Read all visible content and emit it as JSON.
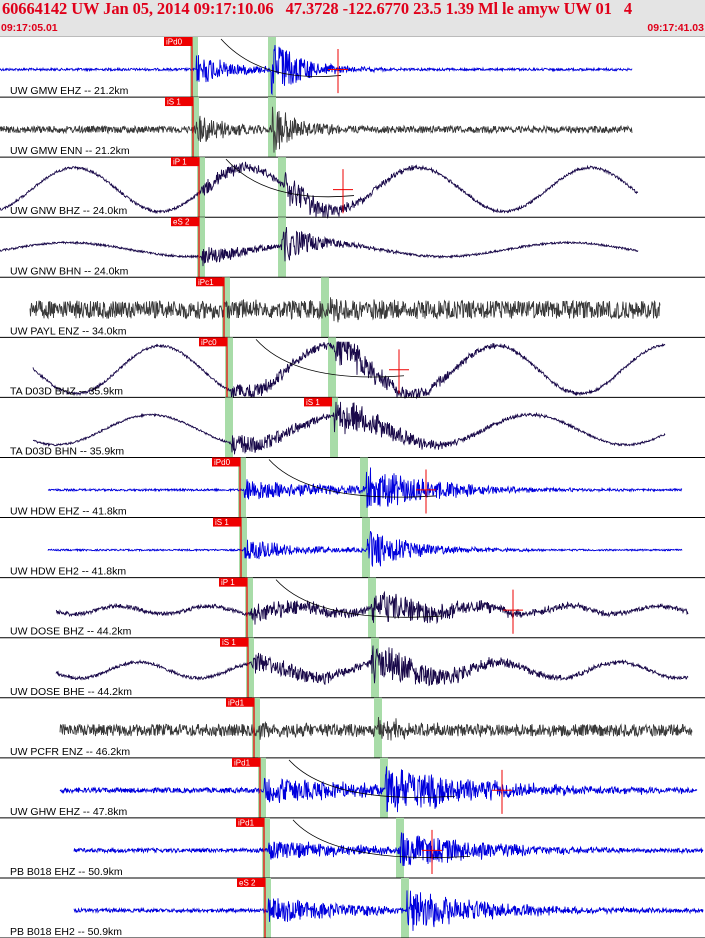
{
  "header": {
    "title": "60664142 UW Jan 05, 2014 09:17:10.06   47.3728 -122.6770 23.5 1.39 Ml le amyw UW 01   4",
    "start_time": "09:17:05.01",
    "end_time": "09:17:41.03"
  },
  "colors": {
    "blue": "#0000dd",
    "gray": "#3a3a3a",
    "navy": "#1a0a4a",
    "pick": "#ee0000",
    "window": "#a8dca8"
  },
  "traces": [
    {
      "label": "UW GMW EHZ -- 21.2km",
      "pick": "iPd0",
      "color": "blue",
      "start": 0,
      "end": 632,
      "noise": 1.2,
      "wave": 0,
      "period": 0,
      "p": 196,
      "s": 271,
      "amp": 30,
      "decay": 40,
      "win": [
        192,
        270
      ],
      "marker": 338,
      "curve": 1,
      "sPick": ""
    },
    {
      "label": "UW GMW ENN -- 21.2km",
      "pick": "iS 1",
      "color": "gray",
      "start": 0,
      "end": 632,
      "noise": 3.5,
      "wave": 0,
      "period": 0,
      "p": 196,
      "s": 272,
      "amp": 28,
      "decay": 30,
      "win": [
        193,
        270
      ],
      "marker": 0,
      "curve": 0,
      "sPick": ""
    },
    {
      "label": "UW GNW BHZ -- 24.0km",
      "pick": "iP 1",
      "color": "navy",
      "start": 0,
      "end": 638,
      "noise": 1.3,
      "wave": 22,
      "period": 172,
      "p": 201,
      "s": 284,
      "amp": 16,
      "decay": 70,
      "win": [
        199,
        280
      ],
      "marker": 343,
      "curve": 1,
      "sPick": ""
    },
    {
      "label": "UW GNW BHN -- 24.0km",
      "pick": "eS 2",
      "color": "navy",
      "start": 0,
      "end": 638,
      "noise": 1.0,
      "wave": 7,
      "period": 250,
      "p": 201,
      "s": 281,
      "amp": 20,
      "decay": 45,
      "win": [
        199,
        280
      ],
      "marker": 0,
      "curve": 0,
      "sPick": ""
    },
    {
      "label": "UW PAYL ENZ -- 34.0km",
      "pick": "iPc1",
      "color": "gray",
      "start": 30,
      "end": 660,
      "noise": 9.0,
      "wave": 0,
      "period": 0,
      "p": 228,
      "s": 326,
      "amp": 6,
      "decay": 60,
      "win": [
        224,
        323
      ],
      "marker": 0,
      "curve": 0,
      "sPick": ""
    },
    {
      "label": "TA D03D BHZ -- 35.9km",
      "pick": "iPc0",
      "color": "navy",
      "start": 33,
      "end": 665,
      "noise": 1.3,
      "wave": 24,
      "period": 168,
      "p": 231,
      "s": 334,
      "amp": 18,
      "decay": 90,
      "win": [
        227,
        330
      ],
      "marker": 399,
      "curve": 1,
      "sPick": ""
    },
    {
      "label": "TA D03D BHN -- 35.9km",
      "pick": "",
      "color": "navy",
      "start": 33,
      "end": 665,
      "noise": 1.0,
      "wave": 15,
      "period": 190,
      "p": 231,
      "s": 334,
      "amp": 20,
      "decay": 80,
      "win": [
        227,
        332
      ],
      "marker": 0,
      "curve": 0,
      "sPick": "iS 1"
    },
    {
      "label": "UW HDW EHZ -- 41.8km",
      "pick": "iPd0",
      "color": "blue",
      "start": 48,
      "end": 682,
      "noise": 1.0,
      "wave": 0,
      "period": 0,
      "p": 244,
      "s": 366,
      "amp": 22,
      "decay": 90,
      "win": [
        240,
        362
      ],
      "marker": 426,
      "curve": 1,
      "sPick": ""
    },
    {
      "label": "UW HDW EH2 -- 41.8km",
      "pick": "iS 1",
      "color": "blue",
      "start": 48,
      "end": 682,
      "noise": 0.8,
      "wave": 0,
      "period": 0,
      "p": 244,
      "s": 367,
      "amp": 20,
      "decay": 60,
      "win": [
        241,
        364
      ],
      "marker": 0,
      "curve": 0,
      "sPick": ""
    },
    {
      "label": "UW DOSE BHZ -- 44.2km",
      "pick": "iP 1",
      "color": "navy",
      "start": 56,
      "end": 688,
      "noise": 2.0,
      "wave": 4,
      "period": 90,
      "p": 251,
      "s": 372,
      "amp": 18,
      "decay": 110,
      "win": [
        247,
        370
      ],
      "marker": 513,
      "curve": 1,
      "sPick": ""
    },
    {
      "label": "UW DOSE BHE -- 44.2km",
      "pick": "iS 1",
      "color": "navy",
      "start": 56,
      "end": 688,
      "noise": 1.6,
      "wave": 8,
      "period": 120,
      "p": 251,
      "s": 371,
      "amp": 20,
      "decay": 100,
      "win": [
        248,
        373
      ],
      "marker": 0,
      "curve": 0,
      "sPick": ""
    },
    {
      "label": "UW PCFR ENZ -- 46.2km",
      "pick": "iPd1",
      "color": "gray",
      "start": 60,
      "end": 692,
      "noise": 6.0,
      "wave": 0,
      "period": 0,
      "p": 258,
      "s": 378,
      "amp": 10,
      "decay": 50,
      "win": [
        254,
        376
      ],
      "marker": 0,
      "curve": 0,
      "sPick": ""
    },
    {
      "label": "UW GHW EHZ -- 47.8km",
      "pick": "iPd1",
      "color": "blue",
      "start": 60,
      "end": 697,
      "noise": 2.5,
      "wave": 0,
      "period": 0,
      "p": 264,
      "s": 385,
      "amp": 24,
      "decay": 120,
      "win": [
        260,
        382
      ],
      "marker": 502,
      "curve": 1,
      "sPick": ""
    },
    {
      "label": "PB B018 EHZ -- 50.9km",
      "pick": "iPd1",
      "color": "blue",
      "start": 74,
      "end": 703,
      "noise": 2.0,
      "wave": 0,
      "period": 0,
      "p": 268,
      "s": 400,
      "amp": 18,
      "decay": 110,
      "win": [
        264,
        398
      ],
      "marker": 432,
      "curve": 1,
      "sPick": ""
    },
    {
      "label": "PB B018 EH2 -- 50.9km",
      "pick": "eS 2",
      "color": "blue",
      "start": 74,
      "end": 703,
      "noise": 1.8,
      "wave": 0,
      "period": 0,
      "p": 268,
      "s": 406,
      "amp": 22,
      "decay": 100,
      "win": [
        265,
        403
      ],
      "marker": 0,
      "curve": 0,
      "sPick": ""
    }
  ]
}
